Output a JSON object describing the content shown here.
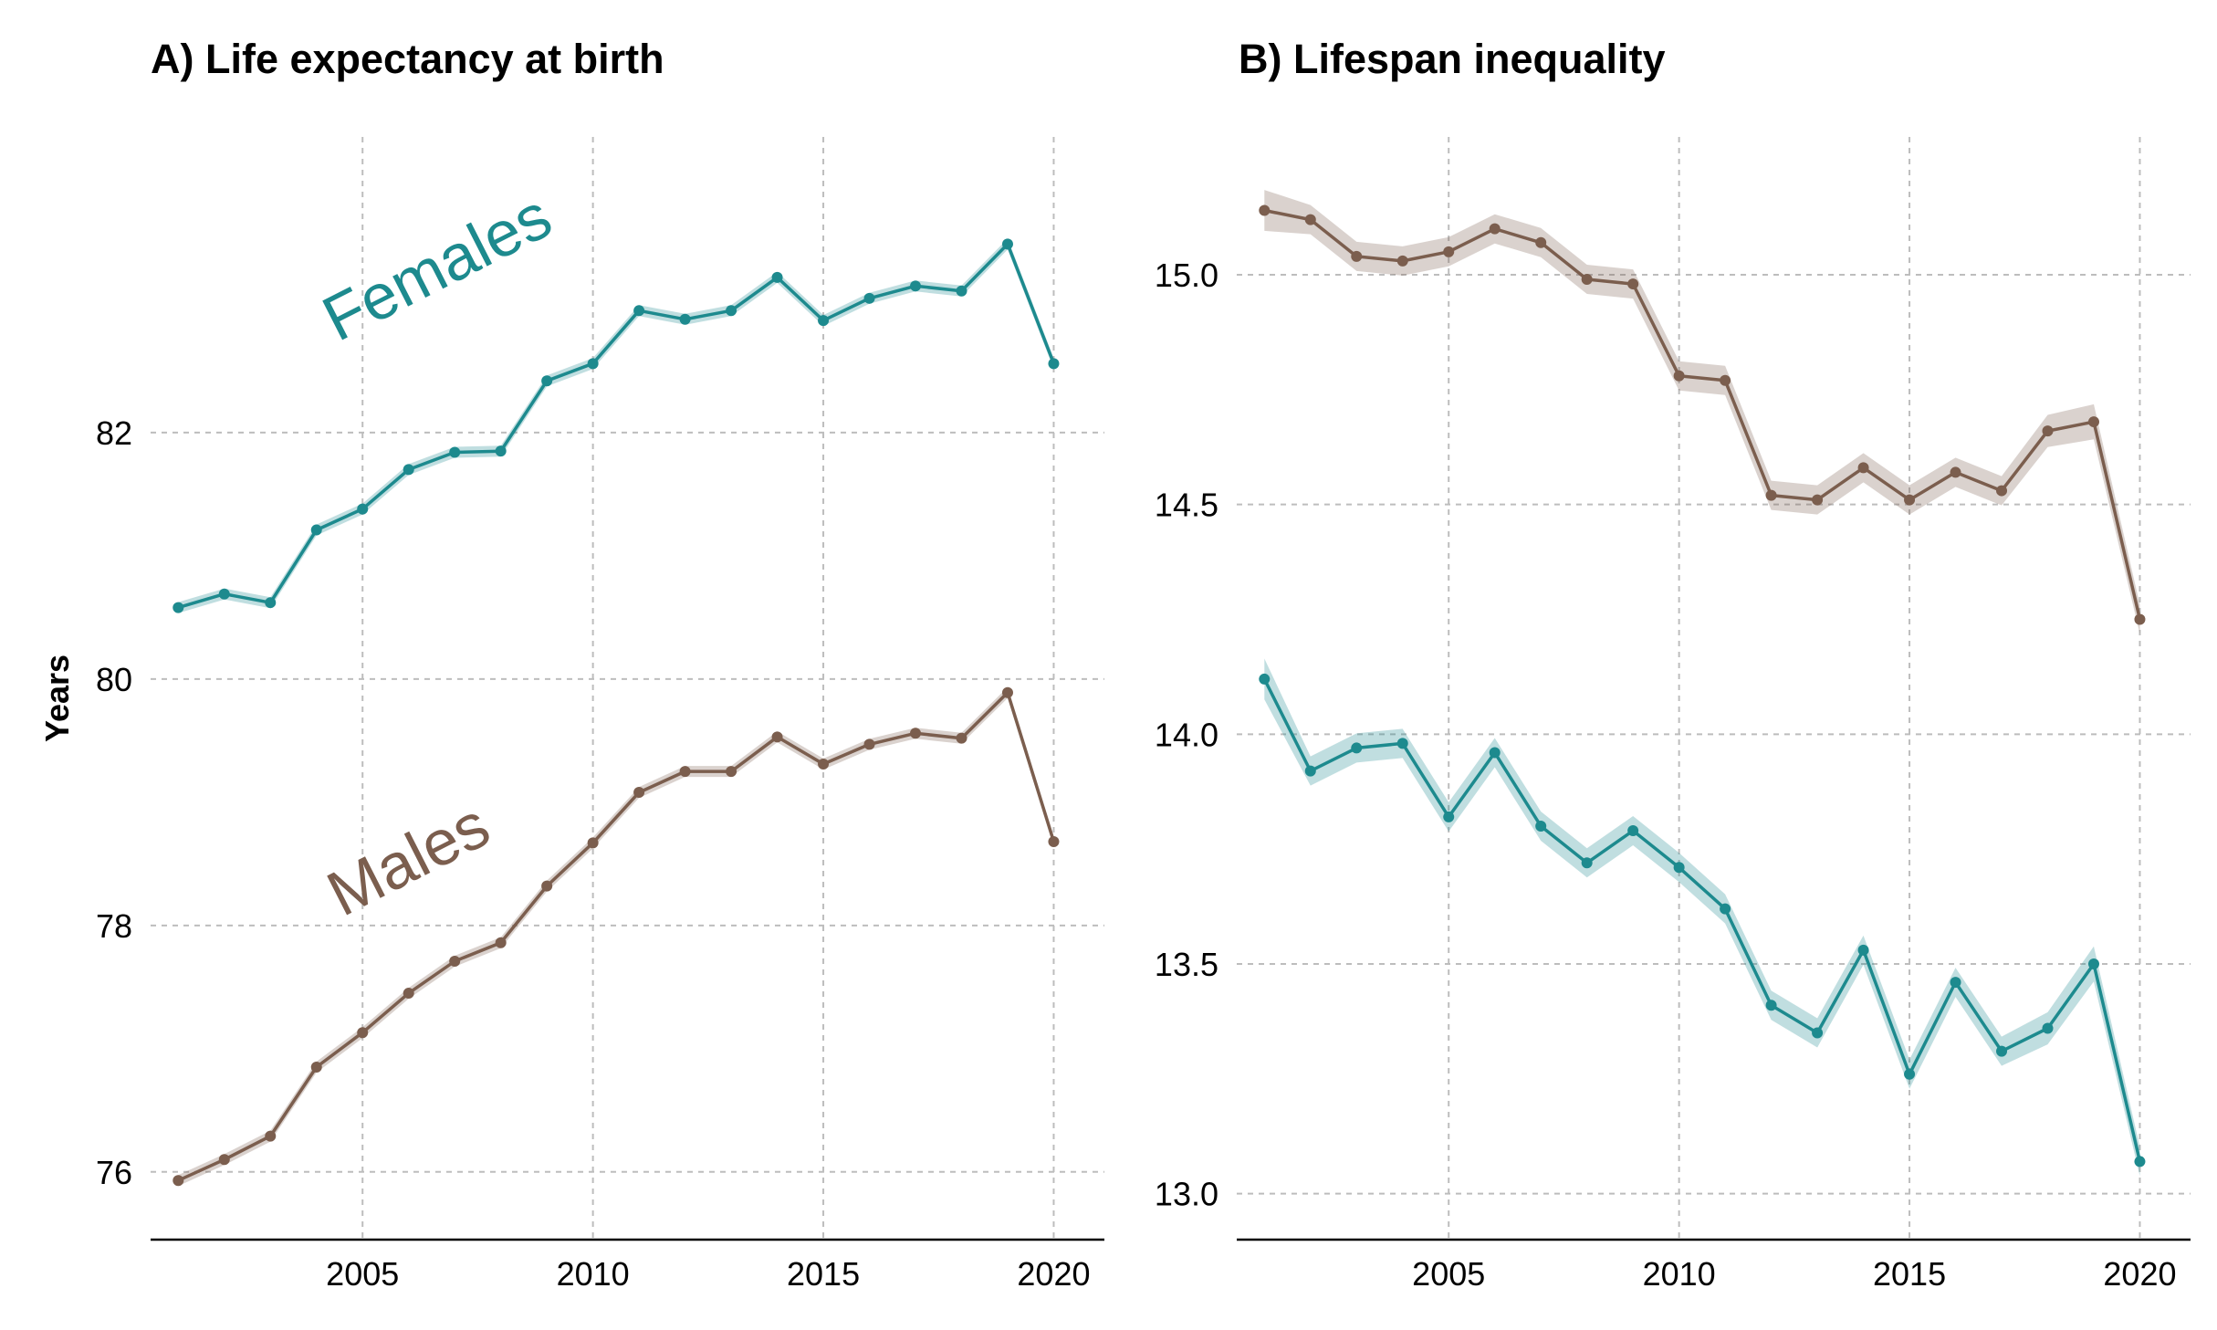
{
  "chart_data": [
    {
      "type": "line",
      "title": "A) Life expectancy at birth",
      "xlabel": "",
      "ylabel": "Years",
      "xlim": [
        2000.4,
        2021.1
      ],
      "ylim": [
        75.45,
        84.4
      ],
      "xticks": [
        2005,
        2010,
        2015,
        2020
      ],
      "yticks": [
        76,
        78,
        80,
        82
      ],
      "grid": true,
      "x": [
        2001,
        2002,
        2003,
        2004,
        2005,
        2006,
        2007,
        2008,
        2009,
        2010,
        2011,
        2012,
        2013,
        2014,
        2015,
        2016,
        2017,
        2018,
        2019,
        2020
      ],
      "series": [
        {
          "name": "Females",
          "color": "#1d8a8e",
          "values": [
            80.58,
            80.69,
            80.62,
            81.21,
            81.38,
            81.7,
            81.84,
            81.85,
            82.42,
            82.56,
            82.99,
            82.92,
            82.99,
            83.26,
            82.91,
            83.09,
            83.19,
            83.15,
            83.53,
            82.56
          ]
        },
        {
          "name": "Males",
          "color": "#7b5e4e",
          "values": [
            75.93,
            76.1,
            76.29,
            76.85,
            77.13,
            77.45,
            77.71,
            77.86,
            78.32,
            78.67,
            79.08,
            79.25,
            79.25,
            79.53,
            79.31,
            79.47,
            79.56,
            79.52,
            79.89,
            78.68
          ]
        }
      ]
    },
    {
      "type": "line",
      "title": "B) Lifespan inequality",
      "xlabel": "",
      "ylabel": "",
      "xlim": [
        2000.4,
        2021.1
      ],
      "ylim": [
        12.9,
        15.3
      ],
      "xticks": [
        2005,
        2010,
        2015,
        2020
      ],
      "yticks": [
        13.0,
        13.5,
        14.0,
        14.5,
        15.0
      ],
      "ytick_labels": [
        "13.0",
        "13.5",
        "14.0",
        "14.5",
        "15.0"
      ],
      "grid": true,
      "x": [
        2001,
        2002,
        2003,
        2004,
        2005,
        2006,
        2007,
        2008,
        2009,
        2010,
        2011,
        2012,
        2013,
        2014,
        2015,
        2016,
        2017,
        2018,
        2019,
        2020
      ],
      "series": [
        {
          "color": "#7b5e4e",
          "values": [
            15.14,
            15.12,
            15.04,
            15.03,
            15.05,
            15.1,
            15.07,
            14.99,
            14.98,
            14.78,
            14.77,
            14.52,
            14.51,
            14.58,
            14.51,
            14.57,
            14.53,
            14.66,
            14.68,
            14.25
          ]
        },
        {
          "color": "#1d8a8e",
          "values": [
            14.12,
            13.92,
            13.97,
            13.98,
            13.82,
            13.96,
            13.8,
            13.72,
            13.79,
            13.71,
            13.62,
            13.41,
            13.35,
            13.53,
            13.26,
            13.46,
            13.31,
            13.36,
            13.5,
            13.07
          ]
        }
      ]
    }
  ]
}
